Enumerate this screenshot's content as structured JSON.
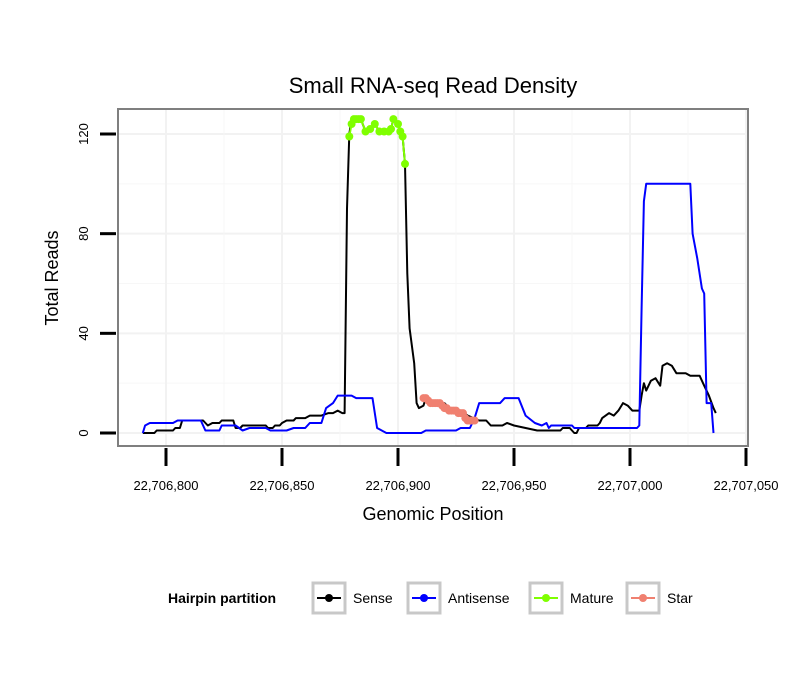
{
  "chart_data": {
    "type": "line",
    "title": "Small RNA-seq Read Density",
    "xlabel": "Genomic Position",
    "ylabel": "Total Reads",
    "xlim": [
      22706790,
      22707040
    ],
    "ylim": [
      -5,
      130
    ],
    "x_ticks": [
      22706800,
      22706850,
      22706900,
      22706950,
      22707000,
      22707050
    ],
    "x_tick_labels": [
      "22,706,800",
      "22,706,850",
      "22,706,900",
      "22,706,950",
      "22,707,000",
      "22,707,050"
    ],
    "y_ticks": [
      0,
      40,
      80,
      120
    ],
    "y_tick_labels": [
      "0",
      "40",
      "80",
      "120"
    ],
    "legend": {
      "title": "Hairpin partition",
      "position": "bottom",
      "entries": [
        {
          "name": "Sense",
          "color": "#000000"
        },
        {
          "name": "Antisense",
          "color": "#0000ff"
        },
        {
          "name": "Mature",
          "color": "#7fff00"
        },
        {
          "name": "Star",
          "color": "#f08070"
        }
      ]
    },
    "series": [
      {
        "name": "Sense",
        "color": "#000000",
        "marker": false,
        "points": [
          [
            22706790,
            0
          ],
          [
            22706795,
            0
          ],
          [
            22706796,
            1
          ],
          [
            22706803,
            1
          ],
          [
            22706804,
            2
          ],
          [
            22706806,
            2
          ],
          [
            22706807,
            5
          ],
          [
            22706816,
            5
          ],
          [
            22706818,
            3
          ],
          [
            22706820,
            4
          ],
          [
            22706823,
            4
          ],
          [
            22706824,
            5
          ],
          [
            22706829,
            5
          ],
          [
            22706830,
            2
          ],
          [
            22706832,
            2
          ],
          [
            22706833,
            3
          ],
          [
            22706843,
            3
          ],
          [
            22706844,
            2
          ],
          [
            22706846,
            2
          ],
          [
            22706847,
            3
          ],
          [
            22706849,
            3
          ],
          [
            22706850,
            4
          ],
          [
            22706852,
            5
          ],
          [
            22706855,
            5
          ],
          [
            22706856,
            6
          ],
          [
            22706860,
            6
          ],
          [
            22706862,
            7
          ],
          [
            22706867,
            7
          ],
          [
            22706870,
            8
          ],
          [
            22706872,
            8
          ],
          [
            22706874,
            9
          ],
          [
            22706876,
            8
          ],
          [
            22706877,
            8
          ],
          [
            22706878,
            90
          ],
          [
            22706879,
            120
          ],
          [
            22706880,
            126
          ],
          [
            22706884,
            126
          ],
          [
            22706886,
            121
          ],
          [
            22706888,
            122
          ],
          [
            22706890,
            124
          ],
          [
            22706892,
            121
          ],
          [
            22706895,
            121
          ],
          [
            22706897,
            122
          ],
          [
            22706898,
            126
          ],
          [
            22706900,
            124
          ],
          [
            22706902,
            119
          ],
          [
            22706903,
            108
          ],
          [
            22706904,
            64
          ],
          [
            22706905,
            42
          ],
          [
            22706907,
            28
          ],
          [
            22706908,
            12
          ],
          [
            22706909,
            10
          ],
          [
            22706911,
            11
          ],
          [
            22706912,
            14
          ],
          [
            22706915,
            12
          ],
          [
            22706920,
            12
          ],
          [
            22706922,
            10
          ],
          [
            22706927,
            9
          ],
          [
            22706930,
            7
          ],
          [
            22706935,
            5
          ],
          [
            22706938,
            5
          ],
          [
            22706940,
            3
          ],
          [
            22706945,
            3
          ],
          [
            22706947,
            4
          ],
          [
            22706950,
            3
          ],
          [
            22706955,
            2
          ],
          [
            22706960,
            1
          ],
          [
            22706970,
            1
          ],
          [
            22706971,
            2
          ],
          [
            22706974,
            2
          ],
          [
            22706976,
            0
          ],
          [
            22706977,
            0
          ],
          [
            22706978,
            2
          ],
          [
            22706981,
            2
          ],
          [
            22706982,
            3
          ],
          [
            22706986,
            3
          ],
          [
            22706987,
            4
          ],
          [
            22706988,
            6
          ],
          [
            22706991,
            8
          ],
          [
            22706993,
            7
          ],
          [
            22706995,
            9
          ],
          [
            22706997,
            12
          ],
          [
            22706999,
            11
          ],
          [
            22707001,
            9
          ],
          [
            22707004,
            9
          ],
          [
            22707005,
            15
          ],
          [
            22707006,
            20
          ],
          [
            22707007,
            17
          ],
          [
            22707009,
            21
          ],
          [
            22707011,
            22
          ],
          [
            22707013,
            19
          ],
          [
            22707014,
            27
          ],
          [
            22707016,
            28
          ],
          [
            22707018,
            27
          ],
          [
            22707020,
            24
          ],
          [
            22707024,
            24
          ],
          [
            22707026,
            23
          ],
          [
            22707030,
            23
          ],
          [
            22707032,
            19
          ],
          [
            22707034,
            15
          ],
          [
            22707036,
            10
          ],
          [
            22707037,
            8
          ]
        ]
      },
      {
        "name": "Antisense",
        "color": "#0000ff",
        "marker": false,
        "points": [
          [
            22706790,
            0
          ],
          [
            22706791,
            3
          ],
          [
            22706793,
            4
          ],
          [
            22706803,
            4
          ],
          [
            22706805,
            5
          ],
          [
            22706815,
            5
          ],
          [
            22706817,
            1
          ],
          [
            22706823,
            1
          ],
          [
            22706824,
            3
          ],
          [
            22706830,
            3
          ],
          [
            22706833,
            1
          ],
          [
            22706836,
            2
          ],
          [
            22706843,
            2
          ],
          [
            22706845,
            1
          ],
          [
            22706852,
            1
          ],
          [
            22706855,
            2
          ],
          [
            22706860,
            2
          ],
          [
            22706862,
            4
          ],
          [
            22706867,
            4
          ],
          [
            22706869,
            10
          ],
          [
            22706872,
            12
          ],
          [
            22706874,
            15
          ],
          [
            22706880,
            15
          ],
          [
            22706882,
            14
          ],
          [
            22706889,
            14
          ],
          [
            22706891,
            2
          ],
          [
            22706895,
            0
          ],
          [
            22706910,
            0
          ],
          [
            22706912,
            1
          ],
          [
            22706925,
            1
          ],
          [
            22706927,
            2
          ],
          [
            22706931,
            2
          ],
          [
            22706933,
            6
          ],
          [
            22706935,
            12
          ],
          [
            22706944,
            12
          ],
          [
            22706946,
            14
          ],
          [
            22706952,
            14
          ],
          [
            22706955,
            7
          ],
          [
            22706959,
            4
          ],
          [
            22706962,
            3
          ],
          [
            22706964,
            4
          ],
          [
            22706965,
            2
          ],
          [
            22706966,
            3
          ],
          [
            22706975,
            3
          ],
          [
            22706976,
            2
          ],
          [
            22706995,
            2
          ],
          [
            22707003,
            2
          ],
          [
            22707004,
            3
          ],
          [
            22707005,
            50
          ],
          [
            22707006,
            93
          ],
          [
            22707007,
            100
          ],
          [
            22707026,
            100
          ],
          [
            22707027,
            80
          ],
          [
            22707029,
            70
          ],
          [
            22707031,
            58
          ],
          [
            22707032,
            56
          ],
          [
            22707033,
            12
          ],
          [
            22707035,
            12
          ],
          [
            22707036,
            0
          ]
        ]
      },
      {
        "name": "Mature",
        "color": "#7fff00",
        "marker": true,
        "points": [
          [
            22706879,
            119
          ],
          [
            22706880,
            124
          ],
          [
            22706881,
            126
          ],
          [
            22706882,
            126
          ],
          [
            22706883,
            126
          ],
          [
            22706884,
            126
          ],
          [
            22706886,
            121
          ],
          [
            22706888,
            122
          ],
          [
            22706890,
            124
          ],
          [
            22706892,
            121
          ],
          [
            22706894,
            121
          ],
          [
            22706896,
            121
          ],
          [
            22706897,
            122
          ],
          [
            22706898,
            126
          ],
          [
            22706900,
            124
          ],
          [
            22706901,
            121
          ],
          [
            22706902,
            119
          ],
          [
            22706903,
            108
          ]
        ]
      },
      {
        "name": "Star",
        "color": "#f08070",
        "marker": true,
        "points": [
          [
            22706911,
            14
          ],
          [
            22706912,
            14
          ],
          [
            22706913,
            13
          ],
          [
            22706914,
            12
          ],
          [
            22706915,
            12
          ],
          [
            22706916,
            12
          ],
          [
            22706917,
            12
          ],
          [
            22706918,
            12
          ],
          [
            22706919,
            11
          ],
          [
            22706920,
            10
          ],
          [
            22706921,
            10
          ],
          [
            22706922,
            9
          ],
          [
            22706923,
            9
          ],
          [
            22706924,
            9
          ],
          [
            22706925,
            9
          ],
          [
            22706926,
            8
          ],
          [
            22706927,
            8
          ],
          [
            22706928,
            8
          ],
          [
            22706929,
            6
          ],
          [
            22706930,
            5
          ],
          [
            22706931,
            5
          ],
          [
            22706932,
            5
          ],
          [
            22706933,
            5
          ]
        ]
      }
    ]
  }
}
